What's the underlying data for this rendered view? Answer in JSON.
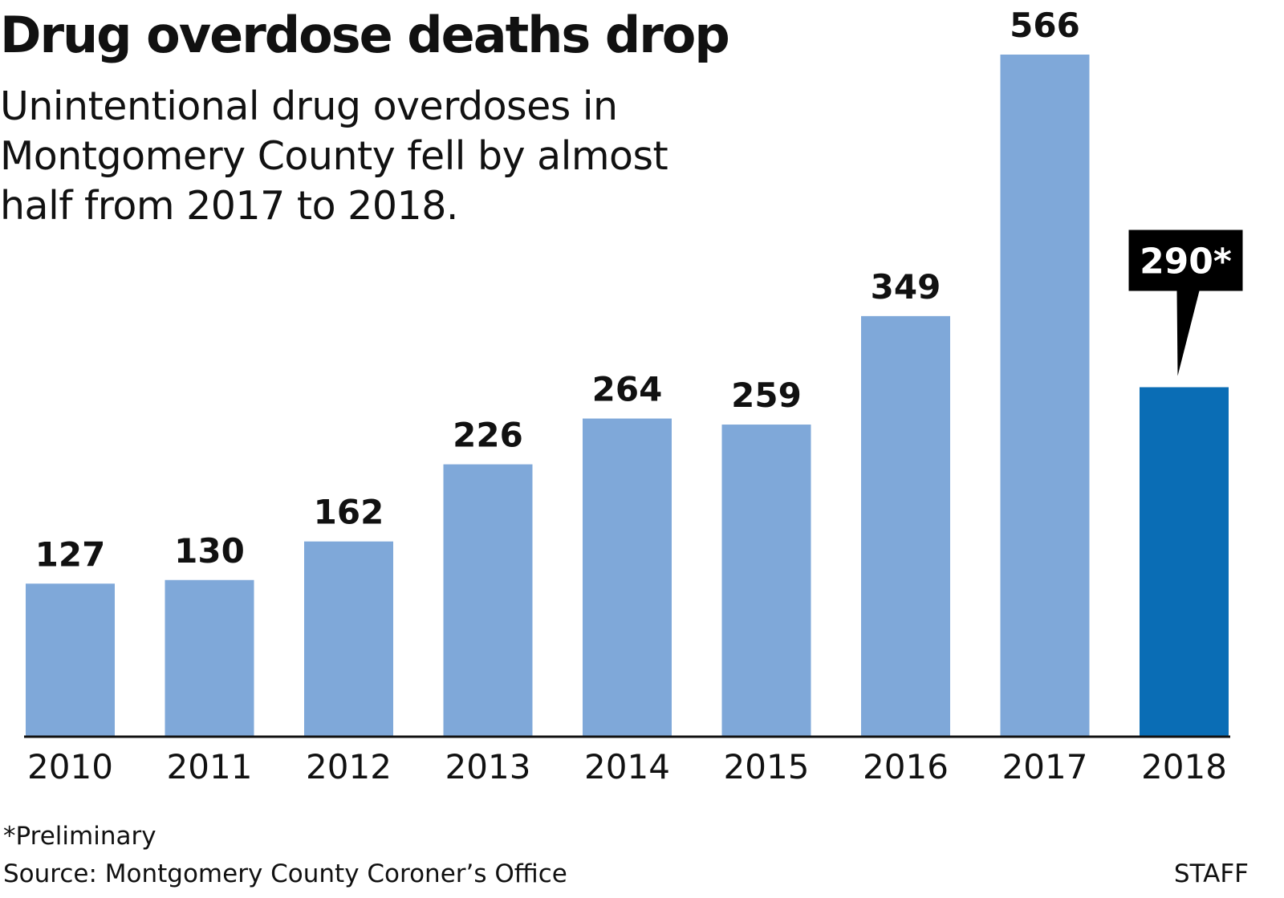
{
  "title": "Drug overdose deaths drop",
  "subtitle": "Unintentional drug overdoses in Montgomery County fell by almost half from 2017 to 2018.",
  "footnote": "*Preliminary",
  "source": "Source: Montgomery County Coroner’s Office",
  "credit": "STAFF",
  "colors": {
    "bar": "#7fa8d9",
    "highlight_bar": "#0a6db5",
    "callout_bg": "#000000",
    "callout_text": "#ffffff",
    "baseline": "#111111",
    "text": "#111111"
  },
  "chart_data": {
    "type": "bar",
    "categories": [
      "2010",
      "2011",
      "2012",
      "2013",
      "2014",
      "2015",
      "2016",
      "2017",
      "2018"
    ],
    "values": [
      127,
      130,
      162,
      226,
      264,
      259,
      349,
      566,
      290
    ],
    "value_labels": [
      "127",
      "130",
      "162",
      "226",
      "264",
      "259",
      "349",
      "566",
      "290*"
    ],
    "highlight_index": 8,
    "callout_index": 8,
    "ylim": [
      0,
      566
    ],
    "grid": false,
    "xlabel": "",
    "ylabel": ""
  }
}
